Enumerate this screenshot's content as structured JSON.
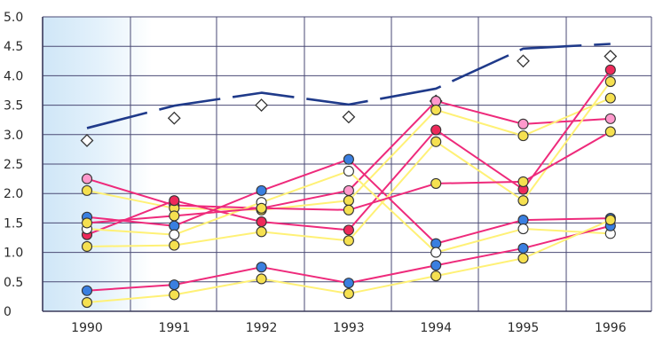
{
  "chart_data": {
    "type": "line",
    "title": "",
    "xlabel": "",
    "ylabel": "",
    "categories": [
      "1990",
      "1991",
      "1992",
      "1993",
      "1994",
      "1995",
      "1996"
    ],
    "ylim": [
      0,
      5
    ],
    "y_ticks": [
      "0",
      "0.5",
      "1.0",
      "1.5",
      "2.0",
      "2.5",
      "3.0",
      "3.5",
      "4.0",
      "4.5",
      "5.0"
    ],
    "grid": true,
    "legend": "none",
    "series": [
      {
        "color": "#1f3a8a",
        "line": "dashed",
        "marker": "diamond",
        "marker_fill": "#ffffff",
        "values": [
          2.9,
          3.28,
          3.5,
          3.3,
          3.57,
          4.25,
          4.33
        ]
      },
      {
        "color": "#ee2a7b",
        "line": "solid",
        "marker": "circle",
        "marker_fill": "#ff99cc",
        "values": [
          2.25,
          1.8,
          1.75,
          2.05,
          3.57,
          3.18,
          3.27
        ]
      },
      {
        "color": "#fff176",
        "line": "solid",
        "marker": "circle",
        "marker_fill": "#f5e050",
        "values": [
          2.05,
          1.75,
          1.72,
          1.88,
          3.42,
          2.98,
          3.62
        ]
      },
      {
        "color": "#ee2a7b",
        "line": "solid",
        "marker": "circle",
        "marker_fill": "#3a7fe0",
        "values": [
          1.6,
          1.45,
          2.05,
          2.58,
          1.15,
          1.55,
          1.58
        ]
      },
      {
        "color": "#ee2a7b",
        "line": "solid",
        "marker": "circle",
        "marker_fill": "#ee2a5a",
        "values": [
          1.3,
          1.88,
          1.52,
          1.38,
          3.08,
          2.07,
          4.1
        ]
      },
      {
        "color": "#fff176",
        "line": "solid",
        "marker": "circle",
        "marker_fill": "#f5e050",
        "values": [
          1.1,
          1.12,
          1.35,
          1.2,
          2.88,
          1.88,
          3.9
        ]
      },
      {
        "color": "#fff176",
        "line": "solid",
        "marker": "circle",
        "marker_fill": "#ffffff",
        "values": [
          1.4,
          1.3,
          1.85,
          2.38,
          1.0,
          1.4,
          1.32
        ]
      },
      {
        "color": "#ee2a7b",
        "line": "solid",
        "marker": "circle",
        "marker_fill": "#f5e050",
        "values": [
          1.5,
          1.62,
          1.75,
          1.72,
          2.17,
          2.2,
          3.05
        ]
      },
      {
        "color": "#ee2a7b",
        "line": "solid",
        "marker": "circle",
        "marker_fill": "#3a7fe0",
        "values": [
          0.35,
          0.45,
          0.75,
          0.48,
          0.78,
          1.07,
          1.45
        ]
      },
      {
        "color": "#fff176",
        "line": "solid",
        "marker": "circle",
        "marker_fill": "#f5e050",
        "values": [
          0.15,
          0.28,
          0.55,
          0.3,
          0.6,
          0.9,
          1.55
        ]
      }
    ]
  }
}
